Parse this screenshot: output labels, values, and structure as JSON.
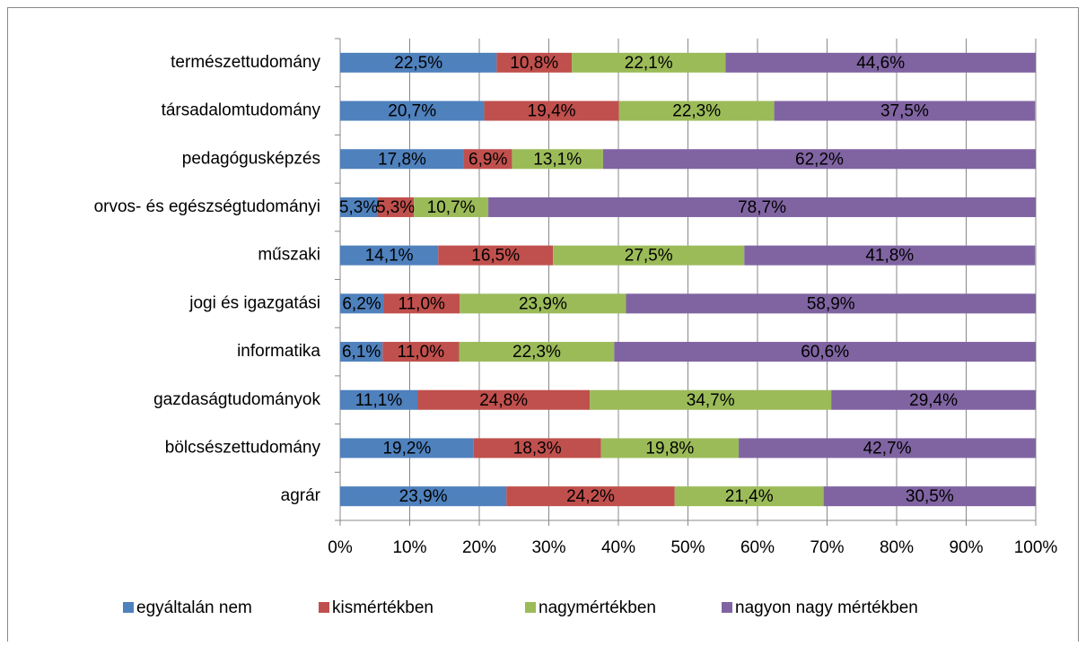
{
  "chart_data": {
    "type": "stacked-bar-horizontal",
    "categories": [
      "természettudomány",
      "társadalomtudomány",
      "pedagógusképzés",
      "orvos- és egészségtudományi",
      "műszaki",
      "jogi és igazgatási",
      "informatika",
      "gazdaságtudományok",
      "bölcsészettudomány",
      "agrár"
    ],
    "series": [
      {
        "name": "egyáltalán nem",
        "color": "#4f81bd",
        "values": [
          22.5,
          20.7,
          17.8,
          5.3,
          14.1,
          6.2,
          6.1,
          11.1,
          19.2,
          23.9
        ],
        "value_labels": [
          "22,5%",
          "20,7%",
          "17,8%",
          "5,3%",
          "14,1%",
          "6,2%",
          "6,1%",
          "11,1%",
          "19,2%",
          "23,9%"
        ]
      },
      {
        "name": "kismértékben",
        "color": "#c0504d",
        "values": [
          10.8,
          19.4,
          6.9,
          5.3,
          16.5,
          11.0,
          11.0,
          24.8,
          18.3,
          24.2
        ],
        "value_labels": [
          "10,8%",
          "19,4%",
          "6,9%",
          "5,3%",
          "16,5%",
          "11,0%",
          "11,0%",
          "24,8%",
          "18,3%",
          "24,2%"
        ]
      },
      {
        "name": "nagymértékben",
        "color": "#9bbb59",
        "values": [
          22.1,
          22.3,
          13.1,
          10.7,
          27.5,
          23.9,
          22.3,
          34.7,
          19.8,
          21.4
        ],
        "value_labels": [
          "22,1%",
          "22,3%",
          "13,1%",
          "10,7%",
          "27,5%",
          "23,9%",
          "22,3%",
          "34,7%",
          "19,8%",
          "21,4%"
        ]
      },
      {
        "name": "nagyon nagy mértékben",
        "color": "#8064a2",
        "values": [
          44.6,
          37.5,
          62.2,
          78.7,
          41.8,
          58.9,
          60.6,
          29.4,
          42.7,
          30.5
        ],
        "value_labels": [
          "44,6%",
          "37,5%",
          "62,2%",
          "78,7%",
          "41,8%",
          "58,9%",
          "60,6%",
          "29,4%",
          "42,7%",
          "30,5%"
        ]
      }
    ],
    "xlim": [
      0,
      100
    ],
    "xticks": [
      {
        "value": 0,
        "label": "0%"
      },
      {
        "value": 10,
        "label": "10%"
      },
      {
        "value": 20,
        "label": "20%"
      },
      {
        "value": 30,
        "label": "30%"
      },
      {
        "value": 40,
        "label": "40%"
      },
      {
        "value": 50,
        "label": "50%"
      },
      {
        "value": 60,
        "label": "60%"
      },
      {
        "value": 70,
        "label": "70%"
      },
      {
        "value": 80,
        "label": "80%"
      },
      {
        "value": 90,
        "label": "90%"
      },
      {
        "value": 100,
        "label": "100%"
      }
    ],
    "grid": true,
    "legend": "bottom"
  }
}
